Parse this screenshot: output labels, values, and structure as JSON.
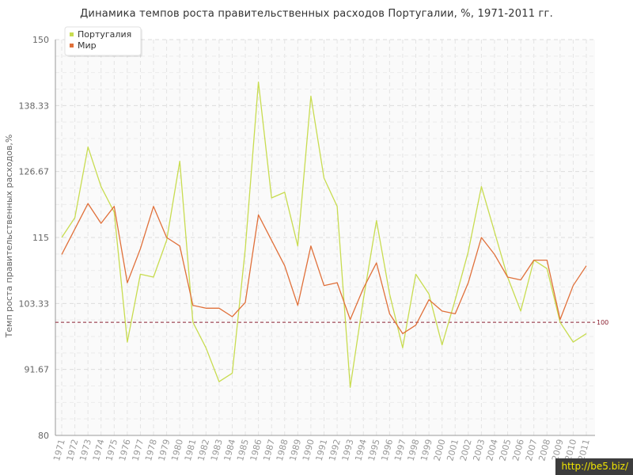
{
  "chart_data": {
    "type": "line",
    "title": "Динамика темпов роста правительственных расходов Португалии, %, 1971-2011 гг.",
    "xlabel": "",
    "ylabel": "Темп роста правительственных расходов,%",
    "ylim": [
      80,
      150
    ],
    "yticks": [
      "80",
      "91.67",
      "103.33",
      "115",
      "126.67",
      "138.33",
      "150"
    ],
    "ytick_values": [
      80,
      91.67,
      103.33,
      115,
      126.67,
      138.33,
      150
    ],
    "categories": [
      "1971",
      "1972",
      "1973",
      "1974",
      "1975",
      "1976",
      "1977",
      "1978",
      "1979",
      "1980",
      "1981",
      "1982",
      "1983",
      "1984",
      "1985",
      "1986",
      "1987",
      "1988",
      "1989",
      "1990",
      "1991",
      "1992",
      "1993",
      "1994",
      "1995",
      "1996",
      "1997",
      "1998",
      "1999",
      "2000",
      "2001",
      "2002",
      "2003",
      "2004",
      "2005",
      "2006",
      "2007",
      "2008",
      "2009",
      "2010",
      "2011"
    ],
    "series": [
      {
        "name": "Португалия",
        "color": "#c8dc50",
        "values": [
          115.0,
          118.5,
          131.0,
          124.0,
          119.5,
          96.5,
          108.5,
          108.0,
          114.5,
          128.5,
          100.0,
          95.5,
          89.5,
          91.0,
          113.0,
          142.5,
          122.0,
          123.0,
          113.5,
          140.0,
          125.5,
          120.5,
          88.5,
          104.0,
          118.0,
          105.0,
          95.5,
          108.5,
          105.0,
          96.0,
          104.0,
          112.5,
          124.0,
          116.0,
          108.0,
          102.0,
          111.0,
          109.5,
          100.0,
          96.5,
          98.0
        ]
      },
      {
        "name": "Мир",
        "color": "#e0703a",
        "values": [
          112.0,
          116.5,
          121.0,
          117.5,
          120.5,
          107.0,
          113.0,
          120.5,
          115.0,
          113.5,
          103.0,
          102.5,
          102.5,
          101.0,
          103.5,
          119.0,
          114.5,
          110.0,
          103.0,
          113.5,
          106.5,
          107.0,
          100.5,
          106.0,
          110.5,
          101.5,
          98.0,
          99.5,
          104.0,
          102.0,
          101.5,
          107.0,
          115.0,
          112.0,
          108.0,
          107.5,
          111.0,
          111.0,
          100.5,
          106.5,
          110.0
        ]
      }
    ],
    "reference_line": {
      "value": 100,
      "label": "100",
      "color": "#8b2030"
    },
    "grid": true,
    "legend_position": "top-left"
  },
  "watermark": "http://be5.biz/"
}
